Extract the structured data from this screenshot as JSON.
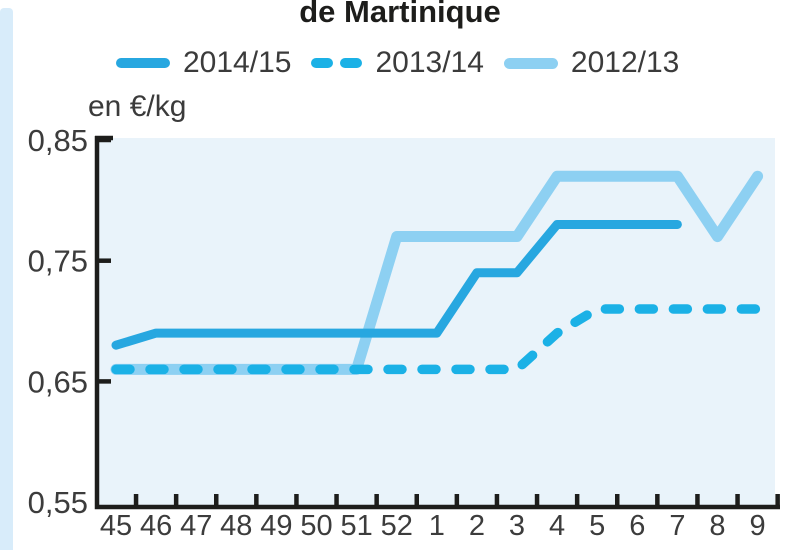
{
  "title": "de Martinique",
  "unit_label": "en €/kg",
  "legend": [
    {
      "label": "2014/15",
      "color": "#27a7e0",
      "style": "solid"
    },
    {
      "label": "2013/14",
      "color": "#1bb1e6",
      "style": "dashed"
    },
    {
      "label": "2012/13",
      "color": "#8dd0f2",
      "style": "solid"
    }
  ],
  "colors": {
    "axis": "#1d1d1b",
    "plot_background": "#e9f3fa",
    "tick_text": "#3c3c3c",
    "side_strip": "#d8ecfa"
  },
  "chart_data": {
    "type": "line",
    "title": "de Martinique",
    "ylabel": "en €/kg",
    "x_categories": [
      "45",
      "46",
      "47",
      "48",
      "49",
      "50",
      "51",
      "52",
      "1",
      "2",
      "3",
      "4",
      "5",
      "6",
      "7",
      "8",
      "9"
    ],
    "x_meaning": "week numbers (45-52 then 1-9)",
    "ylim": [
      0.55,
      0.85
    ],
    "yticks": [
      {
        "label": "0,85",
        "value": 0.85
      },
      {
        "label": "0,75",
        "value": 0.75
      },
      {
        "label": "0,65",
        "value": 0.65
      },
      {
        "label": "0,55",
        "value": 0.55
      }
    ],
    "grid": false,
    "legend_position": "top",
    "series": [
      {
        "name": "2014/15",
        "style": "solid",
        "color": "#27a7e0",
        "width": 9,
        "values": [
          0.68,
          0.69,
          0.69,
          0.69,
          0.69,
          0.69,
          0.69,
          0.69,
          0.69,
          0.74,
          0.74,
          0.78,
          0.78,
          0.78,
          0.78,
          null,
          null
        ]
      },
      {
        "name": "2013/14",
        "style": "dashed",
        "color": "#1bb1e6",
        "width": 9.5,
        "values": [
          0.66,
          0.66,
          0.66,
          0.66,
          0.66,
          0.66,
          0.66,
          0.66,
          0.66,
          0.66,
          0.66,
          0.69,
          0.71,
          0.71,
          0.71,
          0.71,
          0.71
        ]
      },
      {
        "name": "2012/13",
        "style": "solid",
        "color": "#8dd0f2",
        "width": 11,
        "values": [
          0.66,
          0.66,
          0.66,
          0.66,
          0.66,
          0.66,
          0.66,
          0.77,
          0.77,
          0.77,
          0.77,
          0.82,
          0.82,
          0.82,
          0.82,
          0.77,
          0.82
        ]
      }
    ]
  }
}
